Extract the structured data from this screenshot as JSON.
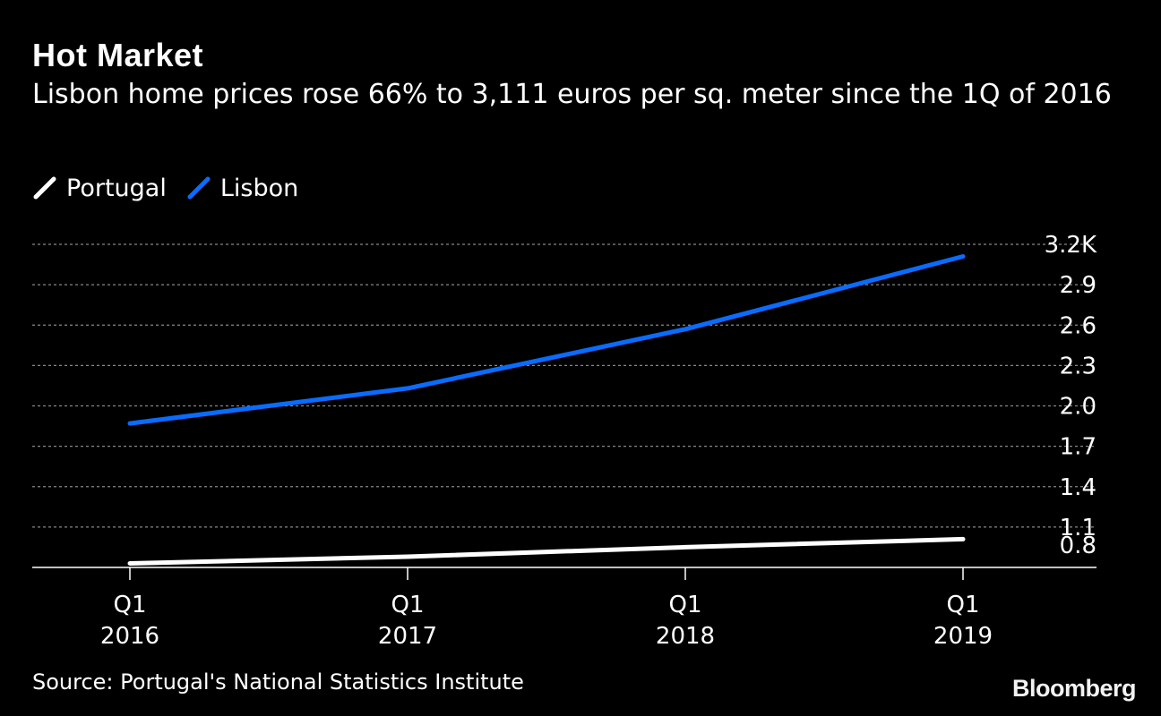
{
  "colors": {
    "background": "#000000",
    "portugal": "#ffffff",
    "lisbon": "#0a6cff",
    "grid": "#888888",
    "text": "#ffffff"
  },
  "chart_data": {
    "type": "line",
    "title": "Hot Market",
    "subtitle": "Lisbon home prices rose 66% to 3,111 euros per sq. meter since the 1Q of 2016",
    "x": [
      0,
      1,
      2,
      3
    ],
    "x_tick_labels": [
      {
        "quarter": "Q1",
        "year": "2016"
      },
      {
        "quarter": "Q1",
        "year": "2017"
      },
      {
        "quarter": "Q1",
        "year": "2018"
      },
      {
        "quarter": "Q1",
        "year": "2019"
      }
    ],
    "y_ticks": [
      0.8,
      1.1,
      1.4,
      1.7,
      2.0,
      2.3,
      2.6,
      2.9,
      3.2
    ],
    "y_tick_labels": [
      "0.8",
      "1.1",
      "1.4",
      "1.7",
      "2.0",
      "2.3",
      "2.6",
      "2.9",
      "3.2K"
    ],
    "ylim": [
      0.8,
      3.2
    ],
    "series": [
      {
        "name": "Portugal",
        "x": [
          0,
          1,
          2,
          3
        ],
        "values": [
          0.83,
          0.88,
          0.95,
          1.01
        ]
      },
      {
        "name": "Lisbon",
        "x": [
          0,
          1,
          2,
          3
        ],
        "values": [
          1.87,
          2.13,
          2.57,
          3.11
        ]
      }
    ],
    "grid": true,
    "legend": "top-left",
    "source": "Source: Portugal's National Statistics Institute"
  },
  "branding": {
    "logo_text": "Bloomberg"
  }
}
